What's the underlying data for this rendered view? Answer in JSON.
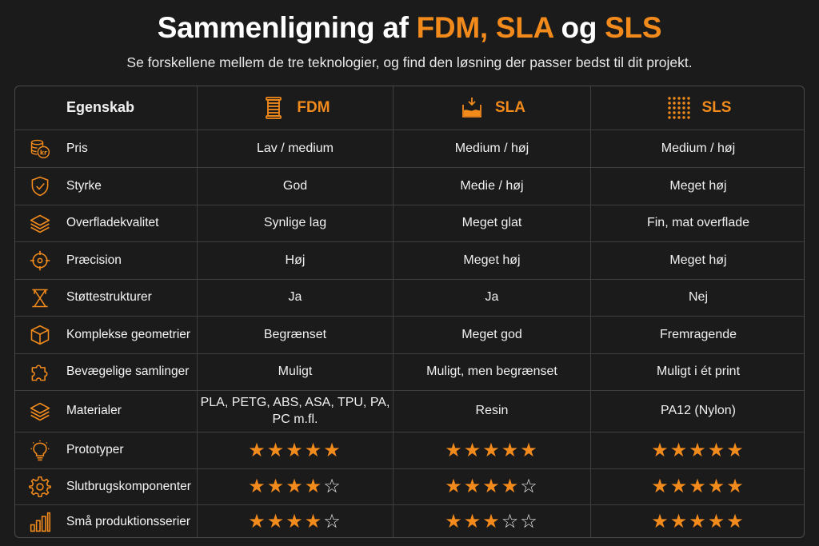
{
  "header": {
    "title_prefix": "Sammenligning af ",
    "title_fdm": "FDM",
    "title_comma": ", ",
    "title_sla": "SLA",
    "title_og": " og ",
    "title_sls": "SLS",
    "subtitle": "Se forskellene mellem de tre teknologier, og find den løsning der passer bedst til dit projekt."
  },
  "colors": {
    "accent": "#f28a1c",
    "background": "#1b1b1b",
    "border": "#4a4a4a"
  },
  "columns": {
    "property": "Egenskab",
    "tech": [
      {
        "name": "FDM",
        "icon": "filament-spool-icon"
      },
      {
        "name": "SLA",
        "icon": "resin-vat-icon"
      },
      {
        "name": "SLS",
        "icon": "powder-dots-icon"
      }
    ]
  },
  "rows": [
    {
      "label": "Pris",
      "icon": "coins-kr-icon",
      "values": [
        "Lav / medium",
        "Medium / høj",
        "Medium / høj"
      ]
    },
    {
      "label": "Styrke",
      "icon": "shield-check-icon",
      "values": [
        "God",
        "Medie / høj",
        "Meget høj"
      ]
    },
    {
      "label": "Overfladekvalitet",
      "icon": "layers-icon",
      "values": [
        "Synlige lag",
        "Meget glat",
        "Fin, mat overflade"
      ]
    },
    {
      "label": "Præcision",
      "icon": "crosshair-icon",
      "values": [
        "Høj",
        "Meget høj",
        "Meget høj"
      ]
    },
    {
      "label": "Støttestrukturer",
      "icon": "support-structure-icon",
      "values": [
        "Ja",
        "Ja",
        "Nej"
      ]
    },
    {
      "label": "Komplekse geometrier",
      "icon": "cube-icon",
      "values": [
        "Begrænset",
        "Meget god",
        "Fremragende"
      ]
    },
    {
      "label": "Bevægelige samlinger",
      "icon": "puzzle-icon",
      "values": [
        "Muligt",
        "Muligt, men begrænset",
        "Muligt i ét print"
      ]
    },
    {
      "label": "Materialer",
      "icon": "layers-icon",
      "values": [
        "PLA, PETG, ABS, ASA, TPU, PA, PC m.fl.",
        "Resin",
        "PA12 (Nylon)"
      ]
    }
  ],
  "rating_rows": [
    {
      "label": "Prototyper",
      "icon": "lightbulb-icon",
      "ratings": [
        5,
        5,
        5
      ]
    },
    {
      "label": "Slutbrugskomponenter",
      "icon": "gear-icon",
      "ratings": [
        4,
        4,
        5
      ]
    },
    {
      "label": "Små produktionsserier",
      "icon": "bar-chart-icon",
      "ratings": [
        4,
        3,
        5
      ]
    }
  ],
  "rating_max": 5
}
